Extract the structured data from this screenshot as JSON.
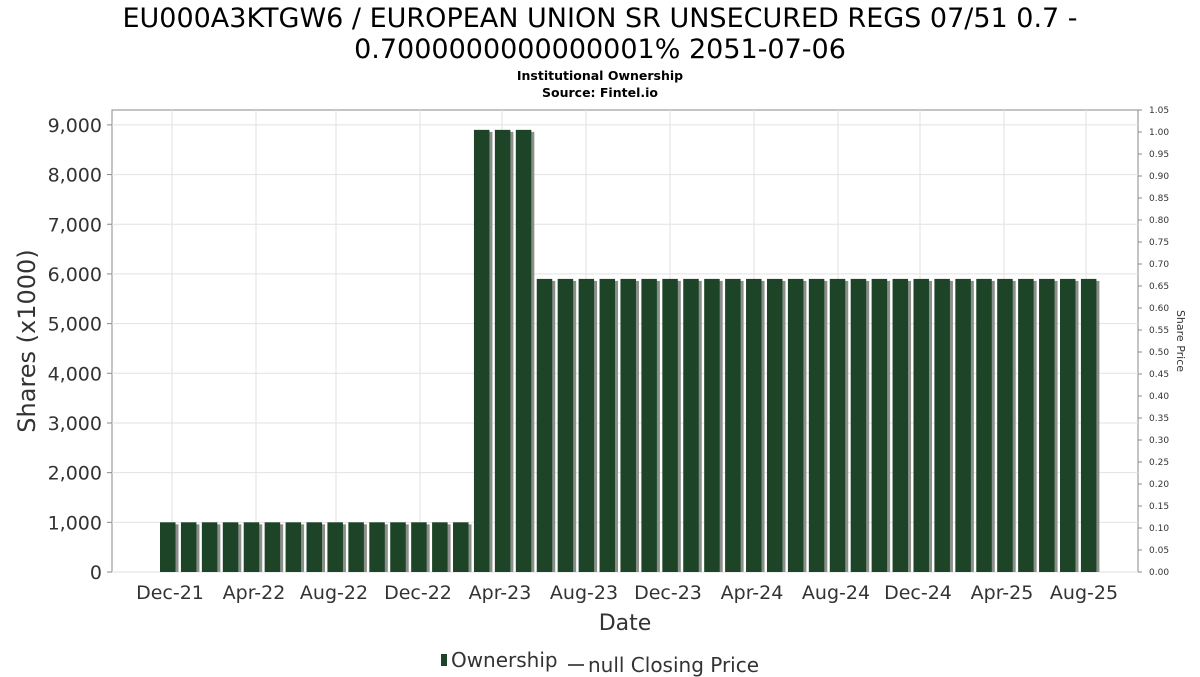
{
  "header": {
    "title_line1": "EU000A3KTGW6 / EUROPEAN UNION SR UNSECURED REGS 07/51 0.7 -",
    "title_line2": "0.7000000000000001% 2051-07-06",
    "subtitle": "Institutional Ownership",
    "source": "Source: Fintel.io"
  },
  "legend": {
    "ownership_label": "Ownership",
    "price_label": "null Closing Price"
  },
  "colors": {
    "bar": "#1e4428",
    "bar_shadow": "#8a8f8a",
    "grid": "#e2e2e2",
    "axis": "#888888"
  },
  "chart_data": {
    "type": "bar",
    "title": "EU000A3KTGW6 / EUROPEAN UNION SR UNSECURED REGS 07/51 0.7 - 0.7000000000000001% 2051-07-06",
    "subtitle": "Institutional Ownership",
    "xlabel": "Date",
    "ylabel": "Shares (x1000)",
    "y2label": "Share Price",
    "ylim": [
      0,
      9300
    ],
    "y2lim": [
      0,
      1.05
    ],
    "yticks": [
      0,
      1000,
      2000,
      3000,
      4000,
      5000,
      6000,
      7000,
      8000,
      9000
    ],
    "ytick_labels": [
      "0",
      "1,000",
      "2,000",
      "3,000",
      "4,000",
      "5,000",
      "6,000",
      "7,000",
      "8,000",
      "9,000"
    ],
    "y2ticks": [
      "0.00",
      "0.05",
      "0.10",
      "0.15",
      "0.20",
      "0.25",
      "0.30",
      "0.35",
      "0.40",
      "0.45",
      "0.50",
      "0.55",
      "0.60",
      "0.65",
      "0.70",
      "0.75",
      "0.80",
      "0.85",
      "0.90",
      "0.95",
      "1.00",
      "1.05"
    ],
    "x_tick_labels": [
      "Dec-21",
      "Apr-22",
      "Aug-22",
      "Dec-22",
      "Apr-23",
      "Aug-23",
      "Dec-23",
      "Apr-24",
      "Aug-24",
      "Dec-24",
      "Apr-25",
      "Aug-25"
    ],
    "grid": true,
    "legend_position": "bottom",
    "series": [
      {
        "name": "Ownership",
        "values": [
          1000,
          1000,
          1000,
          1000,
          1000,
          1000,
          1000,
          1000,
          1000,
          1000,
          1000,
          1000,
          1000,
          1000,
          1000,
          8900,
          8900,
          8900,
          5900,
          5900,
          5900,
          5900,
          5900,
          5900,
          5900,
          5900,
          5900,
          5900,
          5900,
          5900,
          5900,
          5900,
          5900,
          5900,
          5900,
          5900,
          5900,
          5900,
          5900,
          5900,
          5900,
          5900,
          5900,
          5900,
          5900
        ]
      },
      {
        "name": "null Closing Price",
        "values": []
      }
    ]
  }
}
